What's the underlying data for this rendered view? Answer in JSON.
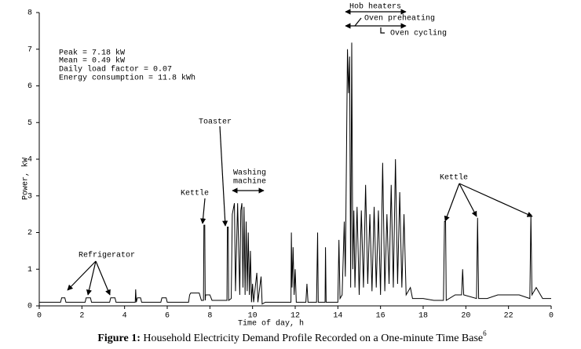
{
  "chart_data": {
    "type": "line",
    "ylabel": "Power, kW",
    "xlabel": "Time of day, h",
    "xlim": [
      0,
      24
    ],
    "ylim": [
      0,
      8
    ],
    "xticks": [
      0,
      2,
      4,
      6,
      8,
      10,
      12,
      14,
      16,
      18,
      20,
      22,
      {
        "value": 24,
        "label": "0"
      }
    ],
    "yticks": [
      0,
      1,
      2,
      3,
      4,
      5,
      6,
      7,
      8
    ],
    "color": "#000000",
    "stats": [
      "Peak = 7.18 kW",
      "Mean = 0.49 kW",
      "Daily load factor = 0.07",
      "Energy consumption = 11.8 kWh"
    ],
    "annotations": [
      "Refrigerator",
      "Kettle",
      "Toaster",
      "Washing",
      "machine",
      "Hob heaters",
      "Oven preheating",
      "Oven cycling",
      "Kettle"
    ],
    "x": [
      0,
      1.0,
      1.05,
      1.2,
      1.25,
      2.15,
      2.2,
      2.4,
      2.45,
      3.3,
      3.35,
      3.55,
      3.6,
      4.5,
      4.52,
      4.55,
      4.6,
      4.75,
      4.8,
      5.7,
      5.75,
      5.95,
      6.0,
      7.0,
      7.05,
      7.1,
      7.5,
      7.6,
      7.7,
      7.72,
      7.76,
      7.78,
      7.8,
      8.0,
      8.1,
      8.8,
      8.82,
      8.86,
      8.88,
      9.0,
      9.05,
      9.15,
      9.2,
      9.3,
      9.4,
      9.45,
      9.5,
      9.55,
      9.6,
      9.65,
      9.7,
      9.75,
      9.8,
      9.85,
      9.9,
      9.95,
      10.0,
      10.05,
      10.2,
      10.25,
      10.4,
      10.45,
      10.6,
      11.8,
      11.82,
      11.85,
      11.9,
      11.95,
      12.0,
      12.05,
      12.5,
      12.55,
      12.6,
      13.0,
      13.05,
      13.08,
      13.4,
      13.42,
      13.45,
      14.0,
      14.05,
      14.1,
      14.2,
      14.3,
      14.35,
      14.45,
      14.5,
      14.55,
      14.6,
      14.65,
      14.7,
      14.75,
      14.8,
      14.9,
      15.0,
      15.1,
      15.2,
      15.3,
      15.4,
      15.5,
      15.6,
      15.7,
      15.8,
      15.9,
      16.0,
      16.1,
      16.2,
      16.3,
      16.4,
      16.5,
      16.6,
      16.7,
      16.8,
      16.9,
      17.0,
      17.1,
      17.2,
      17.4,
      17.5,
      18.0,
      18.5,
      18.95,
      19.0,
      19.05,
      19.08,
      19.5,
      19.8,
      19.85,
      19.9,
      20.5,
      20.55,
      20.6,
      21.0,
      21.5,
      22.5,
      23.0,
      23.05,
      23.1,
      23.3,
      23.6,
      24
    ],
    "values": [
      0.1,
      0.1,
      0.22,
      0.22,
      0.1,
      0.1,
      0.22,
      0.22,
      0.1,
      0.1,
      0.22,
      0.22,
      0.1,
      0.1,
      0.45,
      0.1,
      0.22,
      0.22,
      0.1,
      0.1,
      0.22,
      0.22,
      0.1,
      0.1,
      0.3,
      0.35,
      0.35,
      0.15,
      0.15,
      2.2,
      2.2,
      0.15,
      0.3,
      0.3,
      0.15,
      0.15,
      2.15,
      2.15,
      0.15,
      0.2,
      2.5,
      2.8,
      0.4,
      2.8,
      0.3,
      2.6,
      2.8,
      0.5,
      2.7,
      0.3,
      2.3,
      0.4,
      2.0,
      0.3,
      1.5,
      0.1,
      0.6,
      0.1,
      0.9,
      0.1,
      0.8,
      0.05,
      0.1,
      0.1,
      2.0,
      0.5,
      1.6,
      0.3,
      1.0,
      0.1,
      0.1,
      0.6,
      0.1,
      0.1,
      2.0,
      0.1,
      0.1,
      1.6,
      0.1,
      0.1,
      1.8,
      0.2,
      0.3,
      2.3,
      0.8,
      7.0,
      5.8,
      6.8,
      0.5,
      7.18,
      1.0,
      2.6,
      0.5,
      2.7,
      0.3,
      2.6,
      0.5,
      3.3,
      0.6,
      2.5,
      0.4,
      2.7,
      0.5,
      2.6,
      0.3,
      3.9,
      0.4,
      2.5,
      0.6,
      3.3,
      0.5,
      4.0,
      0.6,
      3.1,
      0.5,
      2.5,
      0.3,
      0.5,
      0.2,
      0.2,
      0.15,
      0.15,
      2.3,
      2.3,
      0.15,
      0.3,
      0.3,
      1.0,
      0.3,
      0.2,
      2.4,
      0.2,
      0.2,
      0.3,
      0.3,
      0.2,
      2.5,
      0.3,
      0.5,
      0.2,
      0.2
    ]
  },
  "caption": {
    "label": "Figure 1:",
    "text": " Household Electricity Demand Profile Recorded on a One-minute Time Base",
    "ref": "6"
  }
}
